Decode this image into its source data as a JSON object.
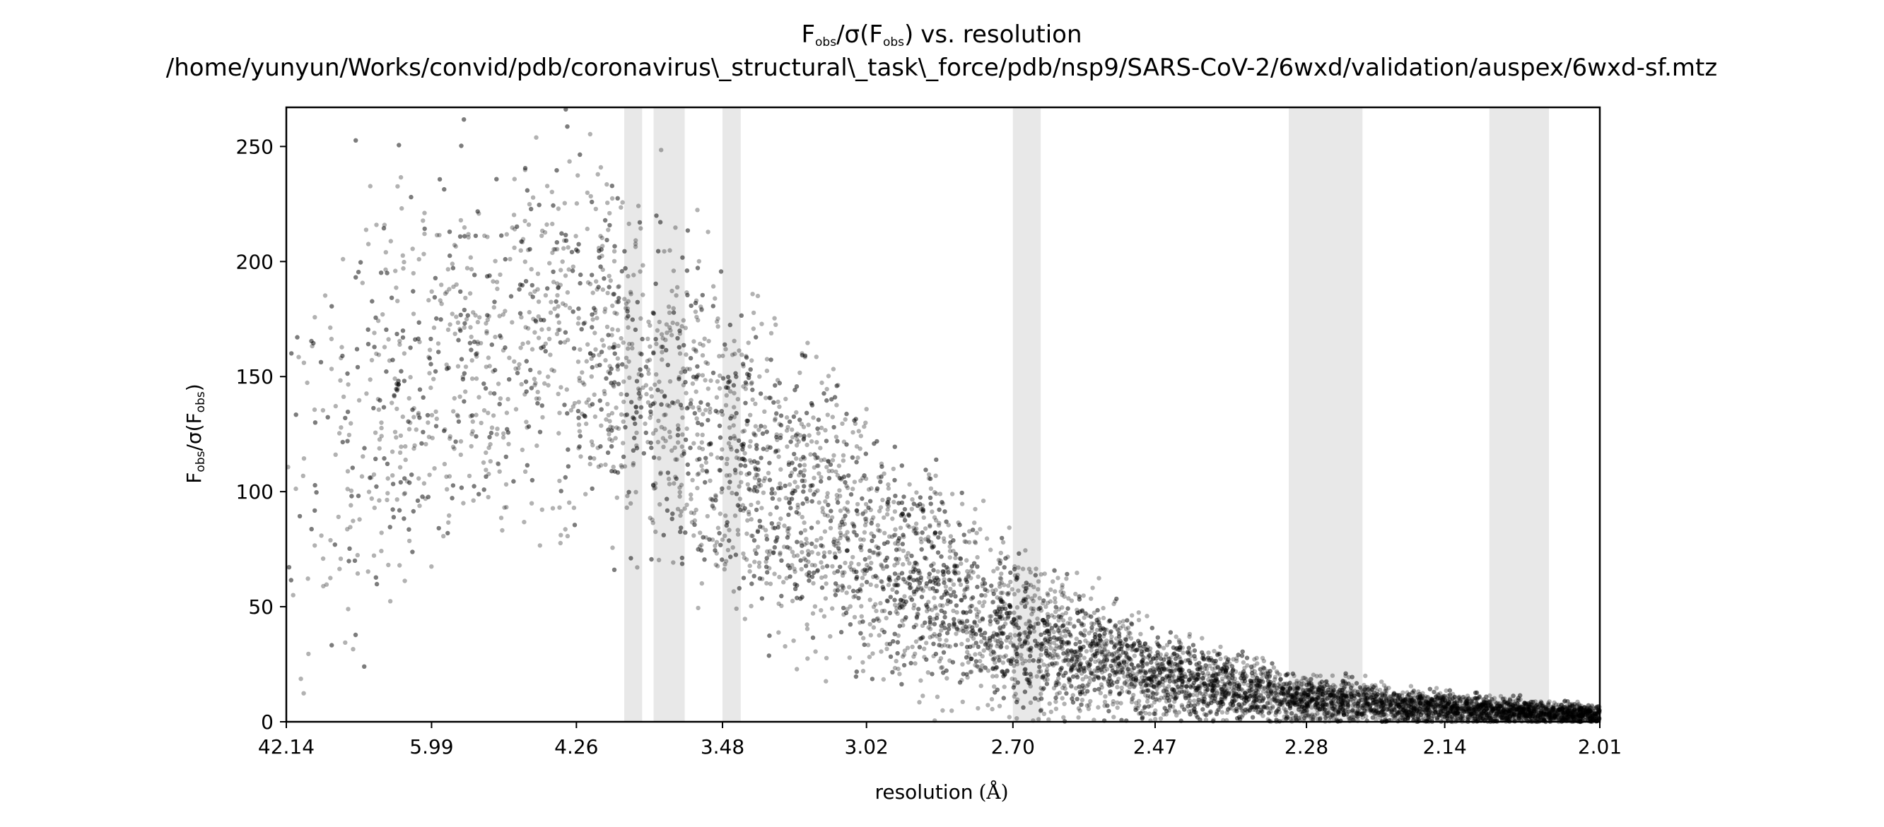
{
  "chart_data": {
    "type": "scatter",
    "title_main": "vs. resolution",
    "title_symbol": {
      "base": "F",
      "sub": "obs",
      "mid": "/σ(",
      "base2": "F",
      "sub2": "obs",
      "end": ")"
    },
    "title_path": "/home/yunyun/Works/convid/pdb/coronavirus\\_structural\\_task\\_force/pdb/nsp9/SARS-CoV-2/6wxd/validation/auspex/6wxd-sf.mtz",
    "xlabel": "resolution",
    "xlabel_unit": "(Å)",
    "ylabel": {
      "base": "F",
      "sub": "obs",
      "mid": "/σ(",
      "base2": "F",
      "sub2": "obs",
      "end": ")"
    },
    "x_axis_scale": "1/d² (reciprocal resolution squared)",
    "xlim_resolution": [
      42.14,
      2.01
    ],
    "ylim": [
      0,
      267
    ],
    "x_ticks": [
      "42.14",
      "5.99",
      "4.26",
      "3.48",
      "3.02",
      "2.70",
      "2.47",
      "2.28",
      "2.14",
      "2.01"
    ],
    "y_ticks": [
      0,
      50,
      100,
      150,
      200,
      250
    ],
    "point_color": "#000000",
    "point_alpha": 0.3,
    "ice_ring_color": "#e8e8e8",
    "ice_rings_resolution": [
      [
        3.95,
        3.85
      ],
      [
        3.79,
        3.64
      ],
      [
        3.48,
        3.41
      ],
      [
        2.7,
        2.65
      ],
      [
        2.3,
        2.22
      ],
      [
        2.1,
        2.05
      ]
    ],
    "series": [
      {
        "density_profile": [
          {
            "resolution": 42.14,
            "y_median": 95,
            "y_spread": 70
          },
          {
            "resolution": 8.0,
            "y_median": 140,
            "y_spread": 70
          },
          {
            "resolution": 5.99,
            "y_median": 150,
            "y_spread": 65
          },
          {
            "resolution": 4.26,
            "y_median": 170,
            "y_spread": 60
          },
          {
            "resolution": 3.48,
            "y_median": 120,
            "y_spread": 55
          },
          {
            "resolution": 3.02,
            "y_median": 75,
            "y_spread": 40
          },
          {
            "resolution": 2.7,
            "y_median": 40,
            "y_spread": 25
          },
          {
            "resolution": 2.47,
            "y_median": 20,
            "y_spread": 14
          },
          {
            "resolution": 2.28,
            "y_median": 10,
            "y_spread": 8
          },
          {
            "resolution": 2.14,
            "y_median": 6,
            "y_spread": 5
          },
          {
            "resolution": 2.01,
            "y_median": 3,
            "y_spread": 3
          }
        ]
      }
    ],
    "grid": false,
    "legend": "none"
  }
}
